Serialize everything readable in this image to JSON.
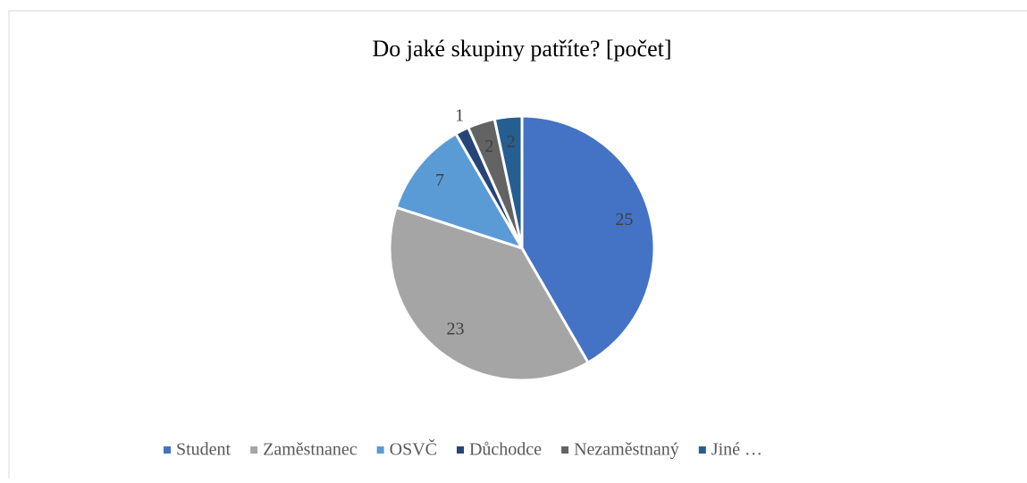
{
  "chart_data": {
    "type": "pie",
    "title": "Do jaké skupiny patříte? [počet]",
    "categories": [
      "Student",
      "Zaměstnanec",
      "OSVČ",
      "Důchodce",
      "Nezaměstnaný",
      "Jiné …"
    ],
    "values": [
      25,
      23,
      7,
      1,
      2,
      2
    ],
    "colors": [
      "#4472c4",
      "#a5a5a5",
      "#5b9bd5",
      "#264478",
      "#636363",
      "#255e91"
    ],
    "legend": "bottom"
  }
}
